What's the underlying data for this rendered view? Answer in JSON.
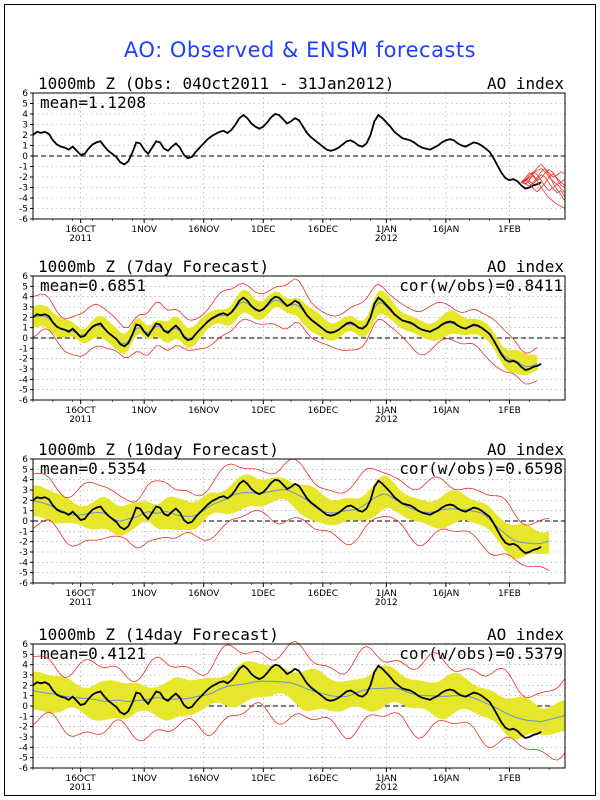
{
  "title": "AO: Observed & ENSM forecasts",
  "colors": {
    "title": "#1f3fff",
    "band": "#e6e62a",
    "ensemble": "#e8312a",
    "mean": "#6e8fd8",
    "obs": "#000000",
    "grid": "#9a9a9a"
  },
  "chart_data": [
    {
      "type": "line",
      "title": "1000mb Z (Obs: 04Oct2011 - 31Jan2012)",
      "right_label": "AO index",
      "stat_left": "mean=1.1208",
      "stat_right": "",
      "ylim": [
        -6,
        6
      ],
      "yticks": [
        "-6",
        "-5",
        "-4",
        "-3",
        "-2",
        "-1",
        "0",
        "1",
        "2",
        "3",
        "4",
        "5",
        "6"
      ],
      "x_ticks": [
        {
          "label": "16OCT",
          "sub": "2011",
          "day": 12
        },
        {
          "label": "1NOV",
          "sub": "",
          "day": 28
        },
        {
          "label": "16NOV",
          "sub": "",
          "day": 43
        },
        {
          "label": "1DEC",
          "sub": "",
          "day": 58
        },
        {
          "label": "16DEC",
          "sub": "",
          "day": 73
        },
        {
          "label": "1JAN",
          "sub": "2012",
          "day": 89
        },
        {
          "label": "16JAN",
          "sub": "",
          "day": 104
        },
        {
          "label": "1FEB",
          "sub": "",
          "day": 120
        }
      ],
      "x_range_days": [
        0,
        134
      ],
      "observed": [
        2,
        2.3,
        2.2,
        2.3,
        2.1,
        1.5,
        1.1,
        0.9,
        0.8,
        0.6,
        0.9,
        0.5,
        0.1,
        0.2,
        0.7,
        1.1,
        1.3,
        1.4,
        0.9,
        0.5,
        0.2,
        -0.1,
        -0.6,
        -0.8,
        -0.5,
        0.3,
        1.3,
        1.2,
        0.6,
        0.2,
        0.8,
        1.4,
        1.3,
        0.7,
        0.5,
        0.9,
        1.2,
        0.8,
        0.1,
        -0.2,
        -0.1,
        0.4,
        0.8,
        1.2,
        1.6,
        1.9,
        2.1,
        2.3,
        2.4,
        2.2,
        2.5,
        3,
        3.6,
        3.9,
        3.6,
        3.1,
        2.8,
        2.6,
        2.8,
        3.2,
        3.7,
        4,
        3.9,
        3.5,
        3.1,
        3.3,
        3.6,
        3.4,
        2.8,
        2.2,
        1.8,
        1.5,
        1.2,
        0.9,
        0.6,
        0.5,
        0.6,
        0.8,
        1.1,
        1.4,
        1.5,
        1.3,
        1,
        0.9,
        1.2,
        2,
        3.3,
        3.9,
        3.6,
        3.2,
        2.8,
        2.3,
        2,
        1.7,
        1.6,
        1.5,
        1.3,
        1,
        0.8,
        0.7,
        0.6,
        0.8,
        1,
        1.3,
        1.5,
        1.6,
        1.5,
        1.2,
        1,
        0.9,
        1.1,
        1.3,
        1.2,
        1,
        0.7,
        0.4,
        -0.2,
        -0.9,
        -1.6,
        -2.1,
        -2.3,
        -2.2,
        -2.4,
        -2.8,
        -3.1,
        -3,
        -2.8,
        -2.7,
        -2.5
      ],
      "forecast_start_day": 123,
      "forecast_members": [
        [
          -2.5,
          -2.3,
          -2,
          -1.6,
          -1.4,
          -1.2,
          -1.5,
          -2,
          -2.4,
          -2.7,
          -2.5,
          -2.8
        ],
        [
          -2.5,
          -2.6,
          -2.9,
          -2.5,
          -2,
          -1.5,
          -1.2,
          -1.8,
          -2.6,
          -3.2,
          -3.7,
          -4.3
        ],
        [
          -2.5,
          -2.4,
          -2.1,
          -1.9,
          -2.4,
          -3,
          -2.6,
          -2,
          -1.7,
          -2.1,
          -2.5,
          -2.2
        ],
        [
          -2.5,
          -2.2,
          -2.6,
          -3.1,
          -3.4,
          -3,
          -3.5,
          -4,
          -4.3,
          -4.6,
          -4.8,
          -5
        ],
        [
          -2.5,
          -2.7,
          -2.3,
          -1.7,
          -1.1,
          -0.8,
          -1.2,
          -1.6,
          -2,
          -1.8,
          -1.5,
          -1.7
        ],
        [
          -2.5,
          -2.3,
          -1.8,
          -1.5,
          -1.8,
          -2.3,
          -2.9,
          -3.3,
          -3,
          -2.7,
          -3.1,
          -3.5
        ],
        [
          -2.5,
          -2.6,
          -2.4,
          -2.7,
          -2.2,
          -1.8,
          -2,
          -2.6,
          -3.1,
          -3.5,
          -3.3,
          -3.9
        ],
        [
          -2.5,
          -2.1,
          -1.6,
          -1.8,
          -2.3,
          -2.1,
          -1.6,
          -1.3,
          -1.6,
          -2.2,
          -2.8,
          -3
        ]
      ]
    },
    {
      "type": "line",
      "title": "1000mb Z (7day Forecast)",
      "right_label": "AO index",
      "stat_left": "mean=0.6851",
      "stat_right": "cor(w/obs)=0.8411",
      "ylim": [
        -6,
        6
      ],
      "yticks": [
        "-6",
        "-5",
        "-4",
        "-3",
        "-2",
        "-1",
        "0",
        "1",
        "2",
        "3",
        "4",
        "5",
        "6"
      ],
      "x_ticks": [
        {
          "label": "16OCT",
          "sub": "2011",
          "day": 12
        },
        {
          "label": "1NOV",
          "sub": "",
          "day": 28
        },
        {
          "label": "16NOV",
          "sub": "",
          "day": 43
        },
        {
          "label": "1DEC",
          "sub": "",
          "day": 58
        },
        {
          "label": "16DEC",
          "sub": "",
          "day": 73
        },
        {
          "label": "1JAN",
          "sub": "2012",
          "day": 89
        },
        {
          "label": "16JAN",
          "sub": "",
          "day": 104
        },
        {
          "label": "1FEB",
          "sub": "",
          "day": 120
        }
      ],
      "x_range_days": [
        0,
        134
      ],
      "forecast_offset": 0.4,
      "smooth": 1,
      "spread_inner": 0.9,
      "spread_outer": 1.8,
      "mean_series_end_day": 127
    },
    {
      "type": "line",
      "title": "1000mb Z (10day Forecast)",
      "right_label": "AO index",
      "stat_left": "mean=0.5354",
      "stat_right": "cor(w/obs)=0.6598",
      "ylim": [
        -6,
        6
      ],
      "yticks": [
        "-6",
        "-5",
        "-4",
        "-3",
        "-2",
        "-1",
        "0",
        "1",
        "2",
        "3",
        "4",
        "5",
        "6"
      ],
      "x_ticks": [
        {
          "label": "16OCT",
          "sub": "2011",
          "day": 12
        },
        {
          "label": "1NOV",
          "sub": "",
          "day": 28
        },
        {
          "label": "16NOV",
          "sub": "",
          "day": 43
        },
        {
          "label": "1DEC",
          "sub": "",
          "day": 58
        },
        {
          "label": "16DEC",
          "sub": "",
          "day": 73
        },
        {
          "label": "1JAN",
          "sub": "2012",
          "day": 89
        },
        {
          "label": "16JAN",
          "sub": "",
          "day": 104
        },
        {
          "label": "1FEB",
          "sub": "",
          "day": 120
        }
      ],
      "x_range_days": [
        0,
        134
      ],
      "forecast_offset": 0.6,
      "smooth": 3,
      "spread_inner": 1.3,
      "spread_outer": 2.4,
      "mean_series_end_day": 130
    },
    {
      "type": "line",
      "title": "1000mb Z (14day Forecast)",
      "right_label": "AO index",
      "stat_left": "mean=0.4121",
      "stat_right": "cor(w/obs)=0.5379",
      "ylim": [
        -6,
        6
      ],
      "yticks": [
        "-6",
        "-5",
        "-4",
        "-3",
        "-2",
        "-1",
        "0",
        "1",
        "2",
        "3",
        "4",
        "5",
        "6"
      ],
      "x_ticks": [
        {
          "label": "16OCT",
          "sub": "2011",
          "day": 12
        },
        {
          "label": "1NOV",
          "sub": "",
          "day": 28
        },
        {
          "label": "16NOV",
          "sub": "",
          "day": 43
        },
        {
          "label": "1DEC",
          "sub": "",
          "day": 58
        },
        {
          "label": "16DEC",
          "sub": "",
          "day": 73
        },
        {
          "label": "1JAN",
          "sub": "2012",
          "day": 89
        },
        {
          "label": "16JAN",
          "sub": "",
          "day": 104
        },
        {
          "label": "1FEB",
          "sub": "",
          "day": 120
        }
      ],
      "x_range_days": [
        0,
        134
      ],
      "forecast_offset": 0.7,
      "smooth": 6,
      "spread_inner": 1.6,
      "spread_outer": 3.0,
      "mean_series_end_day": 134
    }
  ]
}
